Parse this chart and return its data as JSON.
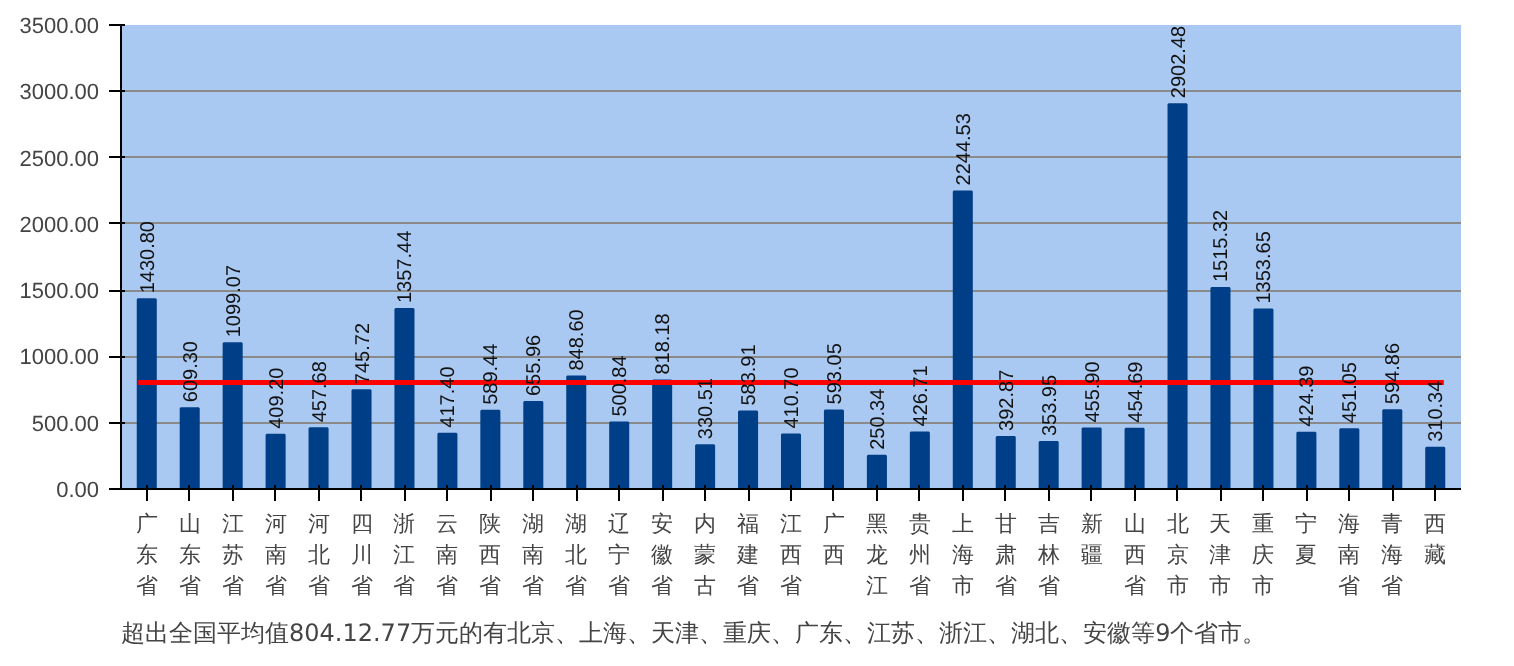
{
  "chart_data": {
    "type": "bar",
    "categories": [
      "广东省",
      "山东省",
      "江苏省",
      "河南省",
      "河北省",
      "四川省",
      "浙江省",
      "云南省",
      "陕西省",
      "湖南省",
      "湖北省",
      "辽宁省",
      "安徽省",
      "内蒙古",
      "福建省",
      "江西省",
      "广西",
      "黑龙江",
      "贵州省",
      "上海市",
      "甘肃省",
      "吉林省",
      "新疆",
      "山西省",
      "北京市",
      "天津市",
      "重庆市",
      "宁夏",
      "海南省",
      "青海省",
      "西藏"
    ],
    "values": [
      1430.8,
      609.3,
      1099.07,
      409.2,
      457.68,
      745.72,
      1357.44,
      417.4,
      589.44,
      655.96,
      848.6,
      500.84,
      818.18,
      330.51,
      583.91,
      410.7,
      593.05,
      250.34,
      426.71,
      2244.53,
      392.87,
      353.95,
      455.9,
      454.69,
      2902.48,
      1515.32,
      1353.65,
      424.39,
      451.05,
      594.86,
      310.34
    ],
    "value_labels": [
      "1430.80",
      "609.30",
      "1099.07",
      "409.20",
      "457.68",
      "745.72",
      "1357.44",
      "417.40",
      "589.44",
      "655.96",
      "848.60",
      "500.84",
      "818.18",
      "330.51",
      "583.91",
      "410.70",
      "593.05",
      "250.34",
      "426.71",
      "2244.53",
      "392.87",
      "353.95",
      "455.90",
      "454.69",
      "2902.48",
      "1515.32",
      "1353.65",
      "424.39",
      "451.05",
      "594.86",
      "310.34"
    ],
    "color": "#003f87",
    "ylim": [
      0,
      3500
    ],
    "yticks": [
      {
        "value": 0,
        "label": "0.00"
      },
      {
        "value": 500,
        "label": "500.00"
      },
      {
        "value": 1000,
        "label": "1000.00"
      },
      {
        "value": 1500,
        "label": "1500.00"
      },
      {
        "value": 2000,
        "label": "2000.00"
      },
      {
        "value": 2500,
        "label": "2500.00"
      },
      {
        "value": 3000,
        "label": "3000.00"
      },
      {
        "value": 3500,
        "label": "3500.00"
      }
    ],
    "grid": "y",
    "ref_lines": [
      {
        "axis": "y",
        "value": 804.13,
        "color": "#ff0000"
      }
    ],
    "annotations": [
      "超出全国平均值804.12.77万元的有北京、上海、天津、重庆、广东、江苏、浙江、湖北、安徽等9个省市。"
    ]
  }
}
